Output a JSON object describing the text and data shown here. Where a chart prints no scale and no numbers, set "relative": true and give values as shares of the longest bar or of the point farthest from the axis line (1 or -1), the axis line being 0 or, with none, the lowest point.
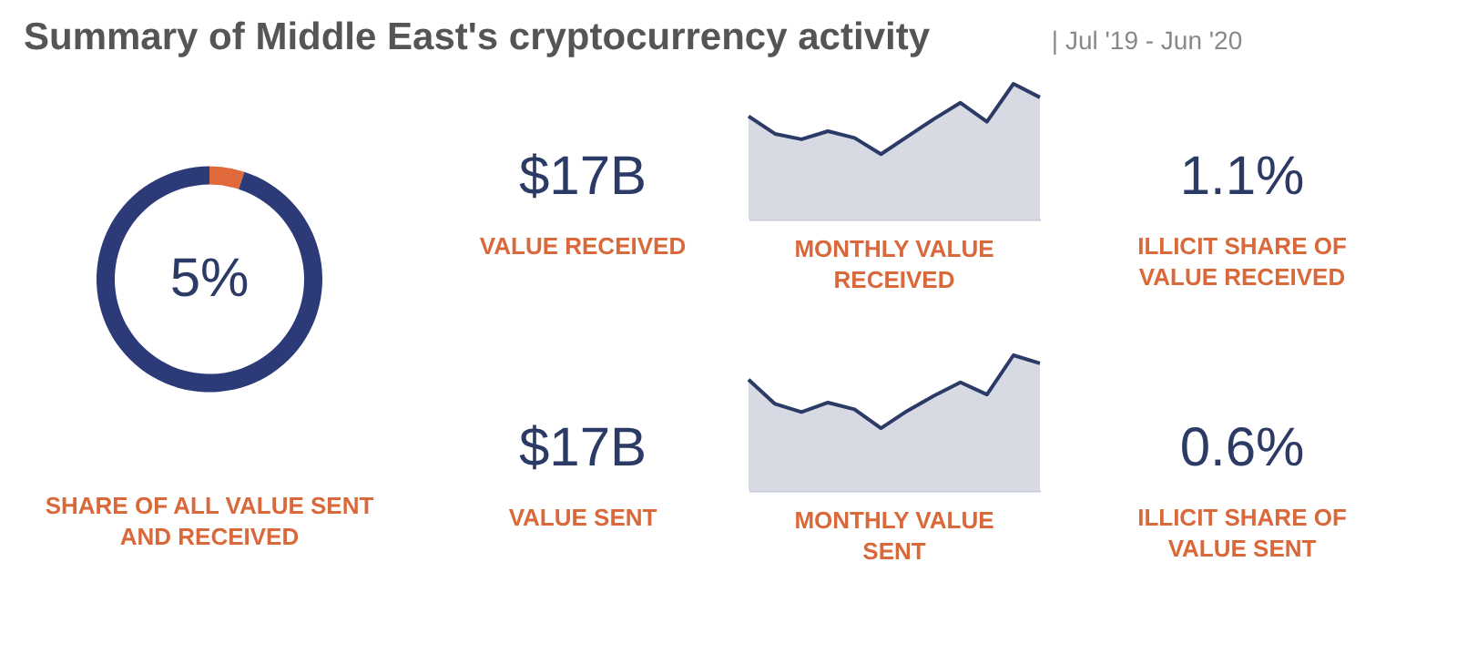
{
  "chart_data": [
    {
      "type": "other",
      "title": "Summary of Middle East's cryptocurrency activity",
      "subtitle": "| Jul '19 - Jun '20"
    },
    {
      "type": "donut",
      "categories": [
        null,
        null
      ],
      "values": [
        5,
        95
      ],
      "colors": [
        "#e06a3b",
        "#2c3a78"
      ],
      "value_labels": [
        "5%",
        null
      ],
      "xlabel": "SHARE OF ALL VALUE SENT AND RECEIVED"
    },
    {
      "type": "other",
      "title": "$17B",
      "xlabel": "VALUE RECEIVED"
    },
    {
      "type": "area",
      "relative": true,
      "categories": [
        null,
        null,
        null,
        null,
        null,
        null,
        null,
        null,
        null,
        null,
        null,
        null
      ],
      "values": [
        0.76,
        0.63,
        0.59,
        0.65,
        0.6,
        0.48,
        0.61,
        0.74,
        0.86,
        0.72,
        1,
        0.9
      ],
      "color": "#c6c9d7",
      "xlabel": "MONTHLY VALUE RECEIVED"
    },
    {
      "type": "other",
      "title": "1.1%",
      "xlabel": "ILLICIT SHARE OF VALUE RECEIVED"
    },
    {
      "type": "other",
      "title": "$17B",
      "xlabel": "VALUE SENT"
    },
    {
      "type": "area",
      "relative": true,
      "categories": [
        null,
        null,
        null,
        null,
        null,
        null,
        null,
        null,
        null,
        null,
        null,
        null
      ],
      "values": [
        0.82,
        0.64,
        0.58,
        0.65,
        0.6,
        0.46,
        0.59,
        0.7,
        0.8,
        0.71,
        1,
        0.94
      ],
      "color": "#c6c9d7",
      "xlabel": "MONTHLY VALUE SENT"
    },
    {
      "type": "other",
      "title": "0.6%",
      "xlabel": "ILLICIT SHARE OF VALUE SENT"
    }
  ]
}
